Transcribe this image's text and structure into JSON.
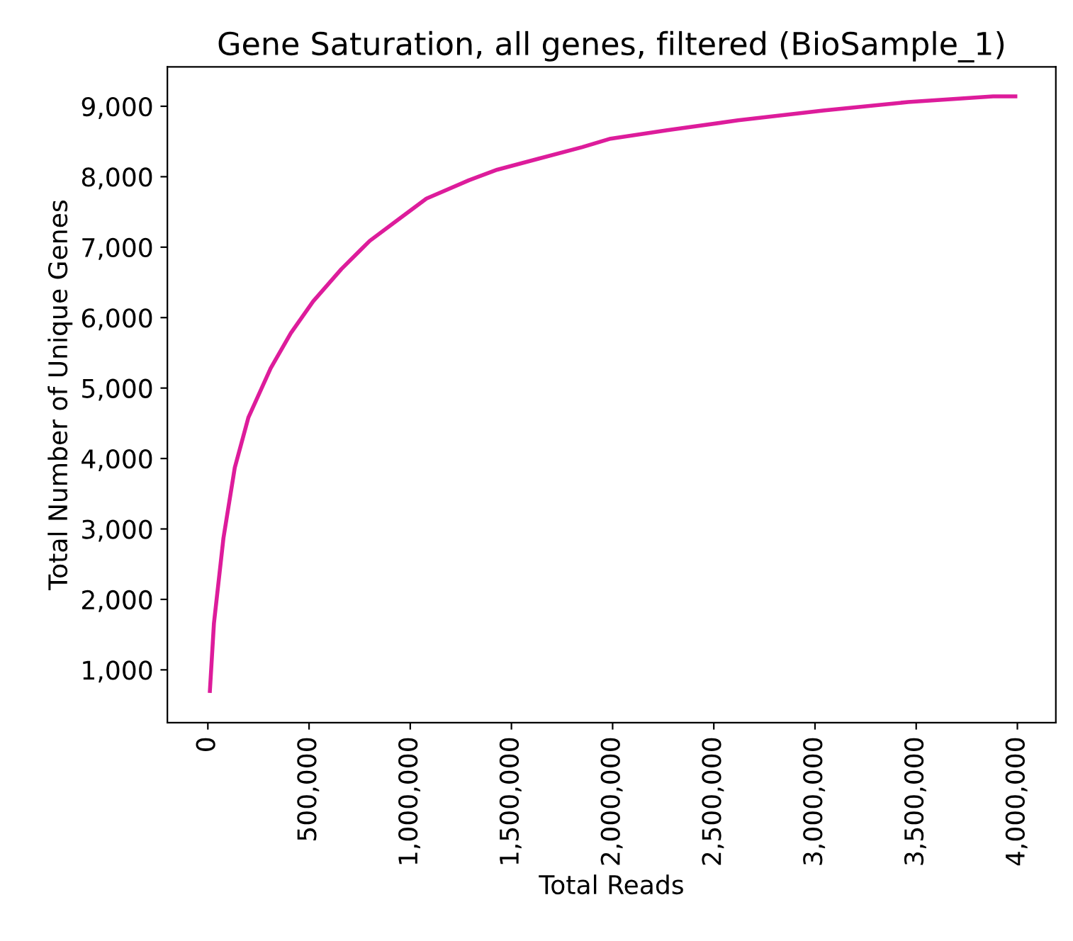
{
  "chart_data": {
    "type": "line",
    "title": "Gene Saturation, all genes, filtered (BioSample_1)",
    "xlabel": "Total Reads",
    "ylabel": "Total Number of Unique Genes",
    "x": [
      10000,
      30000,
      77000,
      133000,
      200000,
      310000,
      410000,
      520000,
      660000,
      800000,
      940000,
      1080000,
      1290000,
      1430000,
      1640000,
      1850000,
      1990000,
      2270000,
      2620000,
      3040000,
      3460000,
      3880000,
      3990000
    ],
    "series": [
      {
        "color": "#dd1c9b",
        "values": [
          700,
          1660,
          2870,
          3870,
          4580,
          5280,
          5780,
          6230,
          6690,
          7090,
          7390,
          7690,
          7950,
          8100,
          8260,
          8420,
          8540,
          8660,
          8800,
          8940,
          9060,
          9140,
          9140
        ]
      }
    ],
    "xlim": [
      -200000,
      4190000
    ],
    "ylim": [
      250,
      9560
    ],
    "xticks": [
      0,
      {
        "value": 500000,
        "label": "500,000"
      },
      {
        "value": 1000000,
        "label": "1,000,000"
      },
      {
        "value": 1500000,
        "label": "1,500,000"
      },
      {
        "value": 2000000,
        "label": "2,000,000"
      },
      {
        "value": 2500000,
        "label": "2,500,000"
      },
      {
        "value": 3000000,
        "label": "3,000,000"
      },
      {
        "value": 3500000,
        "label": "3,500,000"
      },
      {
        "value": 4000000,
        "label": "4,000,000"
      }
    ],
    "yticks": [
      {
        "value": 1000,
        "label": "1,000"
      },
      {
        "value": 2000,
        "label": "2,000"
      },
      {
        "value": 3000,
        "label": "3,000"
      },
      {
        "value": 4000,
        "label": "4,000"
      },
      {
        "value": 5000,
        "label": "5,000"
      },
      {
        "value": 6000,
        "label": "6,000"
      },
      {
        "value": 7000,
        "label": "7,000"
      },
      {
        "value": 8000,
        "label": "8,000"
      },
      {
        "value": 9000,
        "label": "9,000"
      }
    ],
    "grid": false,
    "legend": false,
    "marker": "none",
    "line_style": "solid"
  }
}
